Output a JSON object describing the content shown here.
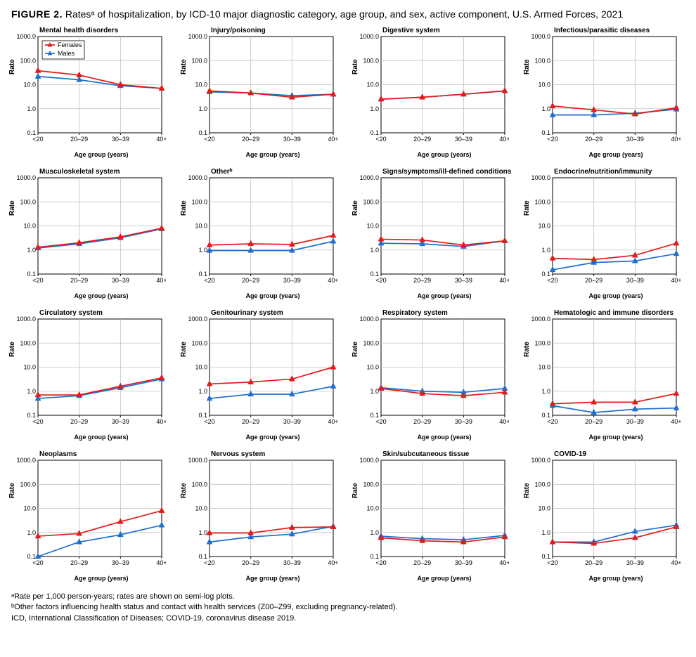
{
  "figure": {
    "number": "FIGURE 2.",
    "title": "Ratesᵃ of hospitalization, by ICD-10 major diagnostic category, age group, and sex, active component, U.S. Armed Forces, 2021"
  },
  "axis": {
    "y_label": "Rate",
    "x_label": "Age group (years)",
    "x_categories": [
      "<20",
      "20–29",
      "30–39",
      "40+"
    ],
    "y_ticks": [
      0.1,
      1.0,
      10.0,
      100.0,
      1000.0
    ],
    "y_scale": "log",
    "ylim": [
      0.1,
      1000.0
    ]
  },
  "style": {
    "female_color": "#e21b1b",
    "male_color": "#1f6fd0",
    "grid_color": "#bfbfbf",
    "border_color": "#000000",
    "tick_font_size": 9,
    "title_font_size": 10,
    "marker": "triangle",
    "marker_size": 4,
    "line_width": 1.7,
    "background": "#ffffff"
  },
  "legend": {
    "show_in_panel": 0,
    "items": [
      {
        "label": "Females",
        "color": "#e21b1b"
      },
      {
        "label": "Males",
        "color": "#1f6fd0"
      }
    ]
  },
  "panels": [
    {
      "title": "Mental health disorders",
      "females": [
        38,
        25,
        10,
        7
      ],
      "males": [
        22,
        16,
        9,
        7
      ]
    },
    {
      "title": "Injury/poisoning",
      "females": [
        5.5,
        4.5,
        3.0,
        4.0
      ],
      "males": [
        5.0,
        4.5,
        3.5,
        4.0
      ]
    },
    {
      "title": "Digestive system",
      "females": [
        2.5,
        3.0,
        4.0,
        5.5
      ],
      "males": [
        2.5,
        3.0,
        4.0,
        5.5
      ]
    },
    {
      "title": "Infectious/parasitic diseases",
      "females": [
        1.3,
        0.9,
        0.6,
        1.1
      ],
      "males": [
        0.55,
        0.55,
        0.65,
        0.95
      ]
    },
    {
      "title": "Musculoskeletal system",
      "females": [
        1.3,
        2.0,
        3.5,
        8.0
      ],
      "males": [
        1.2,
        1.8,
        3.2,
        7.5
      ]
    },
    {
      "title": "Otherᵇ",
      "females": [
        1.6,
        1.8,
        1.7,
        4.0
      ],
      "males": [
        0.95,
        0.95,
        0.95,
        2.3
      ]
    },
    {
      "title": "Signs/symptoms/ill-defined conditions",
      "females": [
        2.8,
        2.6,
        1.6,
        2.4
      ],
      "males": [
        1.9,
        1.8,
        1.4,
        2.4
      ]
    },
    {
      "title": "Endocrine/nutrition/immunity",
      "females": [
        0.45,
        0.4,
        0.6,
        1.9
      ],
      "males": [
        0.15,
        0.3,
        0.35,
        0.7
      ]
    },
    {
      "title": "Circulatory system",
      "females": [
        0.7,
        0.7,
        1.6,
        3.6
      ],
      "males": [
        0.5,
        0.65,
        1.4,
        3.2
      ]
    },
    {
      "title": "Genitourinary system",
      "females": [
        2.0,
        2.4,
        3.2,
        10.0
      ],
      "males": [
        0.5,
        0.75,
        0.75,
        1.6
      ]
    },
    {
      "title": "Respiratory system",
      "females": [
        1.3,
        0.8,
        0.65,
        0.9
      ],
      "males": [
        1.4,
        1.0,
        0.9,
        1.3
      ]
    },
    {
      "title": "Hematologic and immune disorders",
      "females": [
        0.3,
        0.35,
        0.35,
        0.8
      ],
      "males": [
        0.25,
        0.13,
        0.18,
        0.2
      ]
    },
    {
      "title": "Neoplasms",
      "females": [
        0.7,
        0.9,
        2.8,
        8.0
      ],
      "males": [
        0.1,
        0.4,
        0.8,
        2.0
      ]
    },
    {
      "title": "Nervous system",
      "females": [
        0.95,
        0.95,
        1.6,
        1.7
      ],
      "males": [
        0.4,
        0.65,
        0.85,
        1.8
      ]
    },
    {
      "title": "Skin/subcutaneous tissue",
      "females": [
        0.6,
        0.45,
        0.4,
        0.65
      ],
      "males": [
        0.7,
        0.55,
        0.5,
        0.75
      ]
    },
    {
      "title": "COVID-19",
      "females": [
        0.4,
        0.35,
        0.6,
        1.7
      ],
      "males": [
        0.4,
        0.4,
        1.1,
        2.0
      ]
    }
  ],
  "footnotes": {
    "a": "ᵃRate per 1,000 person-years; rates are shown on semi-log plots.",
    "b": "ᵇOther factors influencing health status and contact with health services (Z00–Z99, excluding pregnancy-related).",
    "c": "ICD, International Classification of Diseases; COVID-19, coronavirus disease 2019."
  }
}
